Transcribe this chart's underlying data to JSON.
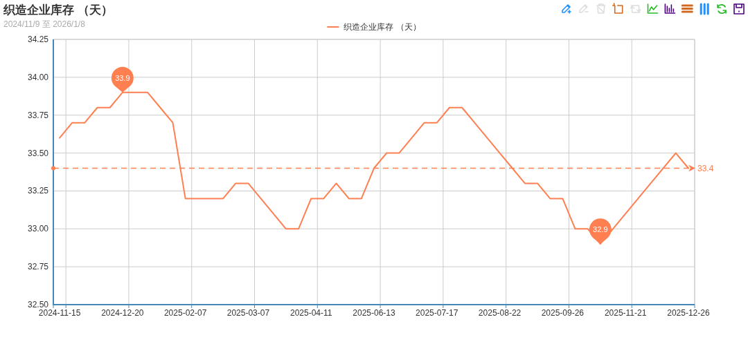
{
  "chart_data": {
    "type": "line",
    "title": "织造企业库存 （天）",
    "subtitle": "2024/11/9 至 2026/1/8",
    "categories": [
      "2024-11-15",
      null,
      null,
      null,
      null,
      "2024-12-20",
      null,
      null,
      null,
      null,
      "2025-02-07",
      null,
      null,
      null,
      null,
      "2025-03-07",
      null,
      null,
      null,
      null,
      "2025-04-11",
      null,
      null,
      null,
      null,
      "2025-06-13",
      null,
      null,
      null,
      null,
      "2025-07-17",
      null,
      null,
      null,
      null,
      "2025-08-22",
      null,
      null,
      null,
      null,
      "2025-09-26",
      null,
      null,
      null,
      null,
      "2025-11-21",
      null,
      null,
      null,
      null,
      "2025-12-26"
    ],
    "series": [
      {
        "name": "织造企业库存 （天）",
        "color": "#ff7f50",
        "values": [
          33.6,
          33.7,
          33.7,
          33.8,
          33.8,
          33.9,
          33.9,
          33.9,
          33.8,
          33.7,
          33.2,
          33.2,
          33.2,
          33.2,
          33.3,
          33.3,
          33.2,
          33.1,
          33.0,
          33.0,
          33.2,
          33.2,
          33.3,
          33.2,
          33.2,
          33.4,
          33.5,
          33.5,
          33.6,
          33.7,
          33.7,
          33.8,
          33.8,
          33.7,
          33.6,
          33.5,
          33.4,
          33.3,
          33.3,
          33.2,
          33.2,
          33.0,
          33.0,
          32.9,
          33.0,
          33.1,
          33.2,
          33.3,
          33.4,
          33.5,
          33.4
        ]
      }
    ],
    "ylim": [
      32.5,
      34.25
    ],
    "yticks": [
      {
        "value": 32.5,
        "label": "32.50"
      },
      32.75,
      {
        "value": 33,
        "label": "33.00"
      },
      33.25,
      {
        "value": 33.5,
        "label": "33.50"
      },
      33.75,
      {
        "value": 34,
        "label": "34.00"
      },
      34.25
    ],
    "grid": true,
    "legend": "top",
    "ref_lines": [
      {
        "axis": "y",
        "value": 33.4,
        "label": "33.4",
        "line_style": "dashed"
      }
    ],
    "annotations": [
      {
        "text": "33.9",
        "x": "2024-12-20",
        "y": 33.9
      },
      {
        "text": "32.9",
        "y": 32.9
      }
    ]
  }
}
